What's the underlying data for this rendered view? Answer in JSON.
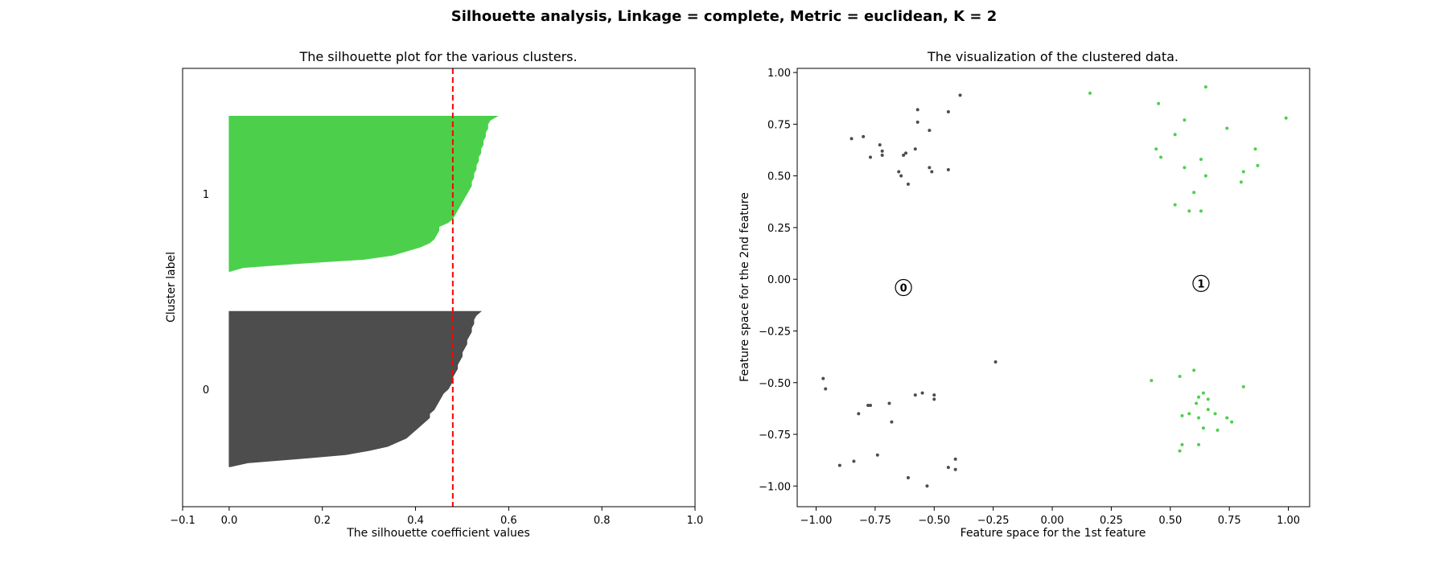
{
  "figure": {
    "suptitle": "Silhouette analysis, Linkage = complete, Metric = euclidean, K = 2"
  },
  "chart_data": [
    {
      "type": "area",
      "title": "The silhouette plot for the various clusters.",
      "xlabel": "The silhouette coefficient values",
      "ylabel": "Cluster label",
      "xlim": [
        -0.1,
        1.0
      ],
      "xticks": [
        -0.1,
        0.0,
        0.2,
        0.4,
        0.6,
        0.8,
        1.0
      ],
      "xtick_labels": [
        "−0.1",
        "0.0",
        "0.2",
        "0.4",
        "0.6",
        "0.8",
        "1.0"
      ],
      "ylim": [
        0,
        110
      ],
      "grid": false,
      "average_silhouette": 0.48,
      "average_line_color": "#ff0000",
      "clusters": [
        {
          "label": "0",
          "color": "#4d4d4d",
          "y_lower": 10,
          "y_upper": 49,
          "values": [
            0.54,
            0.53,
            0.525,
            0.525,
            0.52,
            0.52,
            0.515,
            0.51,
            0.51,
            0.505,
            0.5,
            0.5,
            0.495,
            0.49,
            0.49,
            0.485,
            0.48,
            0.48,
            0.475,
            0.47,
            0.46,
            0.455,
            0.45,
            0.445,
            0.44,
            0.43,
            0.43,
            0.42,
            0.41,
            0.4,
            0.39,
            0.38,
            0.36,
            0.34,
            0.3,
            0.25,
            0.15,
            0.04,
            0.0
          ]
        },
        {
          "label": "1",
          "color": "#4cd04c",
          "y_lower": 59,
          "y_upper": 98,
          "values": [
            0.575,
            0.56,
            0.555,
            0.555,
            0.55,
            0.55,
            0.545,
            0.545,
            0.54,
            0.54,
            0.535,
            0.535,
            0.53,
            0.53,
            0.525,
            0.525,
            0.52,
            0.52,
            0.515,
            0.51,
            0.505,
            0.5,
            0.495,
            0.49,
            0.485,
            0.48,
            0.47,
            0.45,
            0.45,
            0.445,
            0.44,
            0.43,
            0.41,
            0.38,
            0.35,
            0.29,
            0.15,
            0.03,
            0.0
          ]
        }
      ]
    },
    {
      "type": "scatter",
      "title": "The visualization of the clustered data.",
      "xlabel": "Feature space for the 1st feature",
      "ylabel": "Feature space for the 2nd feature",
      "xlim": [
        -1.08,
        1.09
      ],
      "ylim": [
        -1.1,
        1.02
      ],
      "xticks": [
        -1.0,
        -0.75,
        -0.5,
        -0.25,
        0.0,
        0.25,
        0.5,
        0.75,
        1.0
      ],
      "xtick_labels": [
        "−1.00",
        "−0.75",
        "−0.50",
        "−0.25",
        "0.00",
        "0.25",
        "0.50",
        "0.75",
        "1.00"
      ],
      "yticks": [
        -1.0,
        -0.75,
        -0.5,
        -0.25,
        0.0,
        0.25,
        0.5,
        0.75,
        1.0
      ],
      "ytick_labels": [
        "−1.00",
        "−0.75",
        "−0.50",
        "−0.25",
        "0.00",
        "0.25",
        "0.50",
        "0.75",
        "1.00"
      ],
      "grid": false,
      "series": [
        {
          "cluster": "0",
          "color": "#4d4d4d",
          "points": [
            [
              -0.39,
              0.89
            ],
            [
              -0.57,
              0.82
            ],
            [
              -0.44,
              0.81
            ],
            [
              -0.57,
              0.76
            ],
            [
              -0.52,
              0.72
            ],
            [
              -0.85,
              0.68
            ],
            [
              -0.8,
              0.69
            ],
            [
              -0.73,
              0.65
            ],
            [
              -0.72,
              0.62
            ],
            [
              -0.72,
              0.6
            ],
            [
              -0.77,
              0.59
            ],
            [
              -0.62,
              0.61
            ],
            [
              -0.63,
              0.6
            ],
            [
              -0.58,
              0.63
            ],
            [
              -0.52,
              0.54
            ],
            [
              -0.51,
              0.52
            ],
            [
              -0.44,
              0.53
            ],
            [
              -0.65,
              0.52
            ],
            [
              -0.64,
              0.5
            ],
            [
              -0.61,
              0.46
            ],
            [
              -0.24,
              -0.4
            ],
            [
              -0.97,
              -0.48
            ],
            [
              -0.96,
              -0.53
            ],
            [
              -0.58,
              -0.56
            ],
            [
              -0.55,
              -0.55
            ],
            [
              -0.5,
              -0.56
            ],
            [
              -0.5,
              -0.58
            ],
            [
              -0.69,
              -0.6
            ],
            [
              -0.77,
              -0.61
            ],
            [
              -0.78,
              -0.61
            ],
            [
              -0.82,
              -0.65
            ],
            [
              -0.68,
              -0.69
            ],
            [
              -0.74,
              -0.85
            ],
            [
              -0.84,
              -0.88
            ],
            [
              -0.9,
              -0.9
            ],
            [
              -0.41,
              -0.87
            ],
            [
              -0.44,
              -0.91
            ],
            [
              -0.41,
              -0.92
            ],
            [
              -0.61,
              -0.96
            ],
            [
              -0.53,
              -1.0
            ]
          ]
        },
        {
          "cluster": "1",
          "color": "#4cd04c",
          "points": [
            [
              0.16,
              0.9
            ],
            [
              0.65,
              0.93
            ],
            [
              0.45,
              0.85
            ],
            [
              0.99,
              0.78
            ],
            [
              0.56,
              0.77
            ],
            [
              0.74,
              0.73
            ],
            [
              0.52,
              0.7
            ],
            [
              0.44,
              0.63
            ],
            [
              0.86,
              0.63
            ],
            [
              0.46,
              0.59
            ],
            [
              0.63,
              0.58
            ],
            [
              0.56,
              0.54
            ],
            [
              0.81,
              0.52
            ],
            [
              0.87,
              0.55
            ],
            [
              0.65,
              0.5
            ],
            [
              0.8,
              0.47
            ],
            [
              0.6,
              0.42
            ],
            [
              0.52,
              0.36
            ],
            [
              0.58,
              0.33
            ],
            [
              0.63,
              0.33
            ],
            [
              0.6,
              -0.44
            ],
            [
              0.42,
              -0.49
            ],
            [
              0.54,
              -0.47
            ],
            [
              0.81,
              -0.52
            ],
            [
              0.64,
              -0.55
            ],
            [
              0.62,
              -0.57
            ],
            [
              0.66,
              -0.58
            ],
            [
              0.61,
              -0.6
            ],
            [
              0.66,
              -0.63
            ],
            [
              0.69,
              -0.65
            ],
            [
              0.58,
              -0.65
            ],
            [
              0.55,
              -0.66
            ],
            [
              0.62,
              -0.67
            ],
            [
              0.74,
              -0.67
            ],
            [
              0.76,
              -0.69
            ],
            [
              0.64,
              -0.72
            ],
            [
              0.7,
              -0.73
            ],
            [
              0.62,
              -0.8
            ],
            [
              0.55,
              -0.8
            ],
            [
              0.54,
              -0.83
            ]
          ]
        }
      ],
      "centers": [
        {
          "label": "0",
          "x": -0.63,
          "y": -0.04
        },
        {
          "label": "1",
          "x": 0.63,
          "y": -0.02
        }
      ]
    }
  ]
}
